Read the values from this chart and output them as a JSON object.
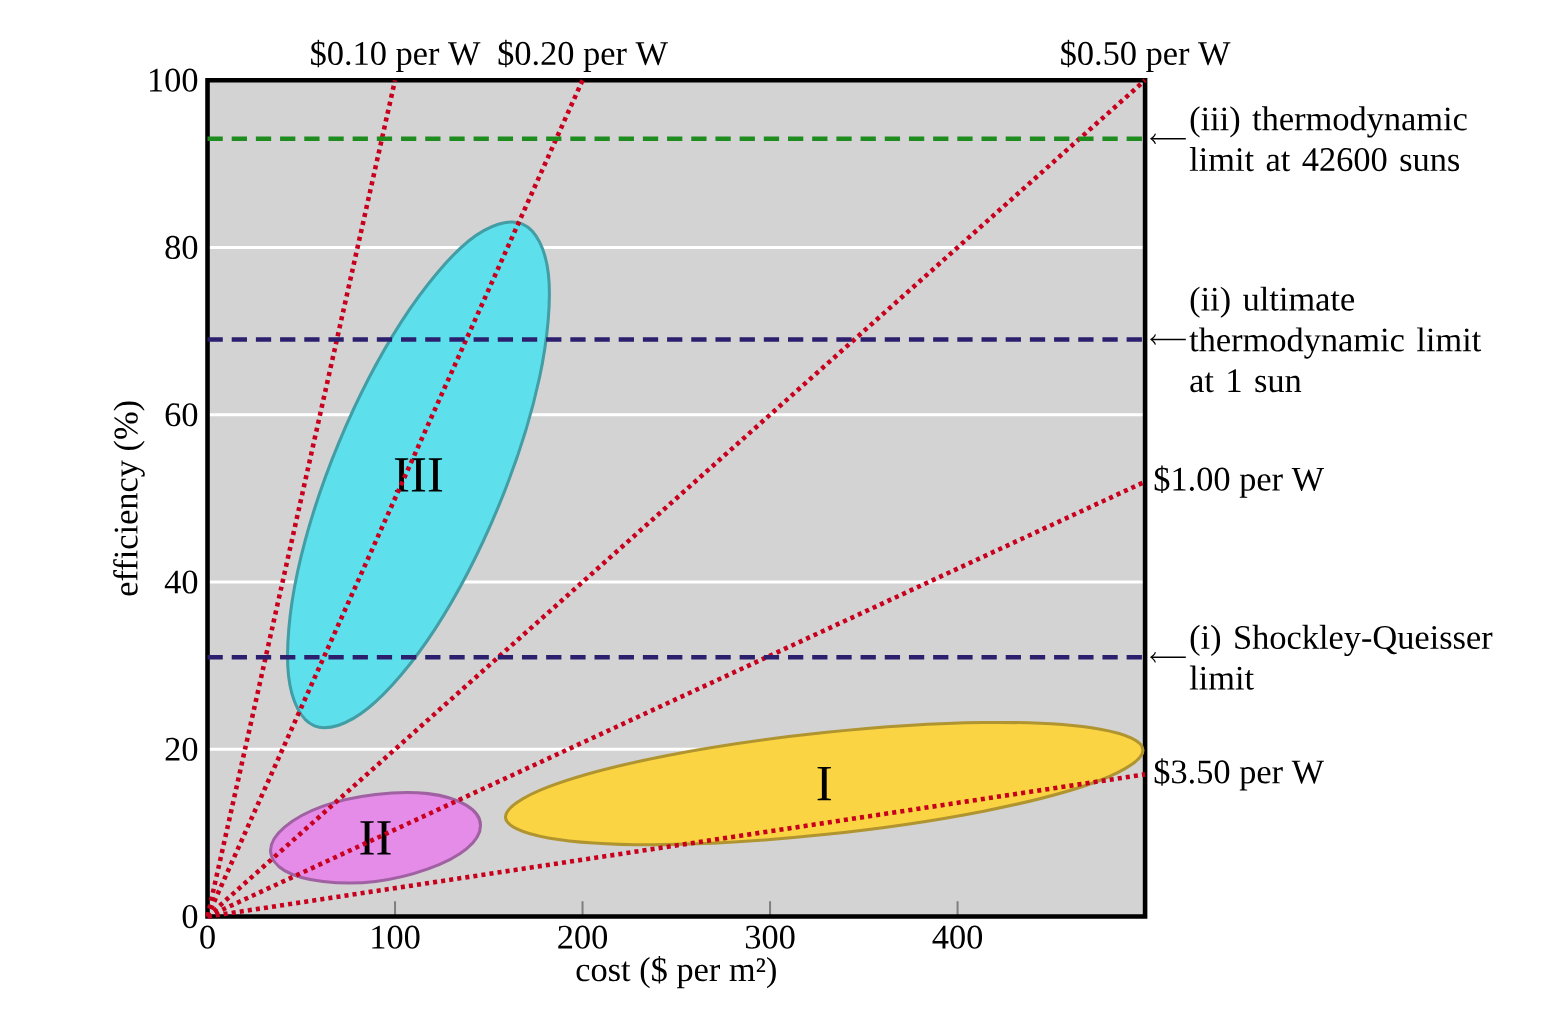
{
  "chart_data": {
    "type": "line",
    "xlabel": "cost ($ per m²)",
    "ylabel": "efficiency (%)",
    "xlim": [
      0,
      500
    ],
    "ylim": [
      0,
      100
    ],
    "xticks": [
      0,
      100,
      200,
      300,
      400
    ],
    "yticks": [
      0,
      20,
      40,
      60,
      80,
      100
    ],
    "grid": "y",
    "series": [
      {
        "name": "I",
        "type": "area",
        "color": "#fbd443",
        "x": [
          498.9,
          476.1,
          413.9,
          328.9,
          243.9,
          181.7,
          158.9,
          181.7,
          243.9,
          328.9,
          413.9,
          476.1
        ],
        "values": [
          19.9,
          22.4,
          23.2,
          22,
          19.2,
          15.5,
          11.9,
          9.4,
          8.6,
          9.8,
          12.6,
          16.3
        ]
      },
      {
        "name": "II",
        "type": "area",
        "color": "#e58be8",
        "x": [
          145.6,
          138.1,
          117.6,
          89.6,
          61.6,
          41.1,
          33.6,
          41.1,
          61.6,
          89.6,
          117.6,
          138.1
        ],
        "values": [
          10.9,
          13.3,
          14.7,
          14.6,
          13.2,
          10.7,
          7.9,
          5.5,
          4.2,
          4.2,
          5.7,
          8.1
        ]
      },
      {
        "name": "III",
        "type": "area",
        "color": "#5ee0ec",
        "x": [
          168,
          181.8,
          177,
          154.9,
          121.4,
          85.6,
          57,
          43.2,
          48,
          70.1,
          103.6,
          139.4
        ],
        "values": [
          82.8,
          76.8,
          64.4,
          48.9,
          34.4,
          24.9,
          22.8,
          28.8,
          41.2,
          56.7,
          71.2,
          80.8
        ]
      },
      {
        "name": "$0.10 per W",
        "line_style": "dotted",
        "color": "#c8001e",
        "x": [
          0,
          100
        ],
        "values": [
          0,
          100
        ]
      },
      {
        "name": "$0.20 per W",
        "line_style": "dotted",
        "color": "#c8001e",
        "x": [
          0,
          200
        ],
        "values": [
          0,
          100
        ]
      },
      {
        "name": "$0.50 per W",
        "line_style": "dotted",
        "color": "#c8001e",
        "x": [
          0,
          500
        ],
        "values": [
          0,
          100
        ]
      },
      {
        "name": "$1.00 per W",
        "line_style": "dotted",
        "color": "#c8001e",
        "x": [
          0,
          500
        ],
        "values": [
          0,
          52
        ]
      },
      {
        "name": "$3.50 per W",
        "line_style": "dotted",
        "color": "#c8001e",
        "x": [
          0,
          500
        ],
        "values": [
          0,
          17
        ]
      }
    ],
    "ref_lines": [
      {
        "axis": "y",
        "value": 93,
        "label": "(iii) thermodynamic limit at 42600 suns",
        "color": "#1e8c1e",
        "line_style": "dashed"
      },
      {
        "axis": "y",
        "value": 69,
        "label": "(ii) ultimate thermodynamic limit at 1 sun",
        "color": "#2b1f6e",
        "line_style": "dashed"
      },
      {
        "axis": "y",
        "value": 31,
        "label": "(i) Shockley-Queisser limit",
        "color": "#2b1f6e",
        "line_style": "dashed"
      }
    ]
  }
}
